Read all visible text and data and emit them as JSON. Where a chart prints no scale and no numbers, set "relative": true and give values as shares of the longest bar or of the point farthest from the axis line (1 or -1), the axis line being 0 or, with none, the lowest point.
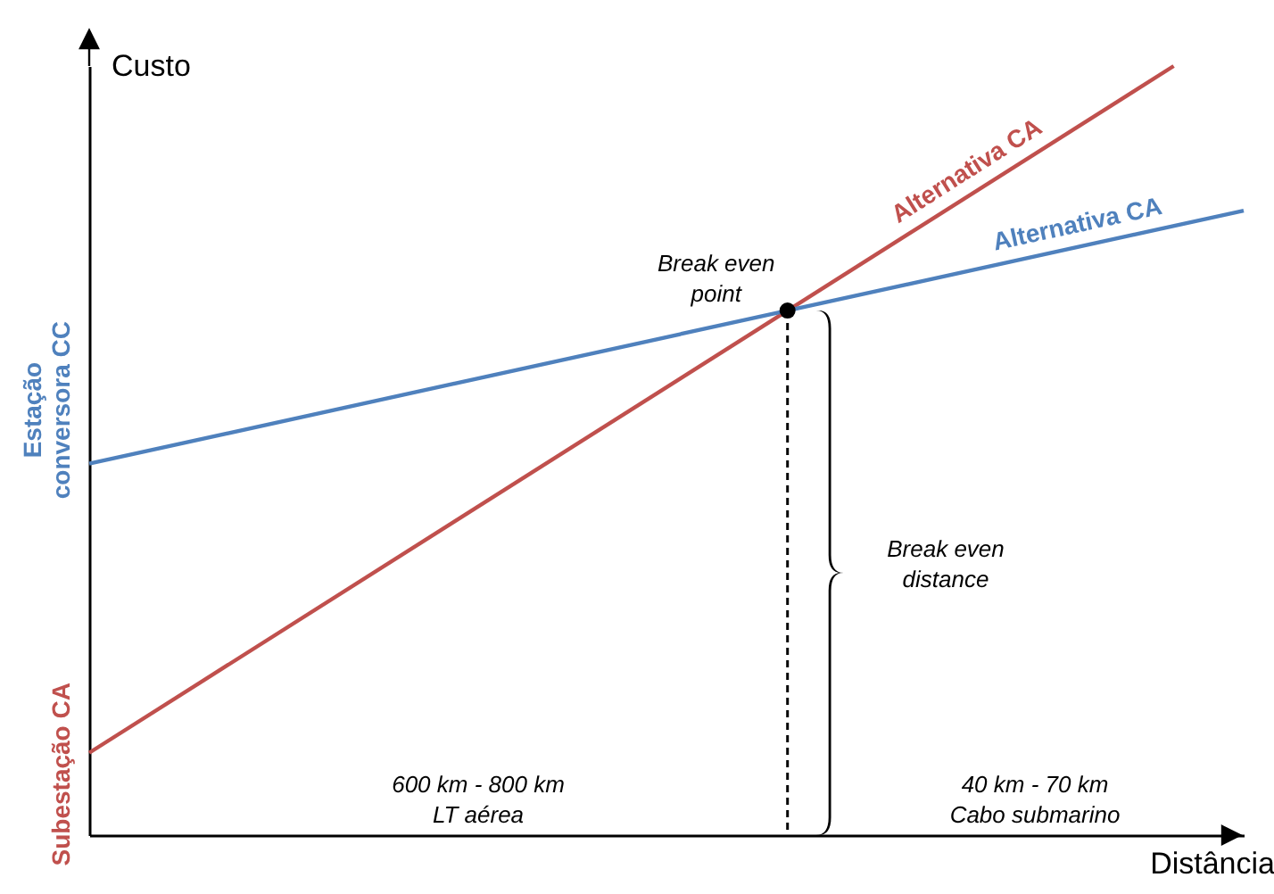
{
  "chart_data": {
    "type": "line",
    "relative": true,
    "xlabel": "Distância",
    "ylabel": "Custo",
    "categories": [
      null,
      null,
      null,
      null,
      null,
      null,
      null,
      null,
      null,
      null,
      null,
      null,
      null,
      null,
      null,
      null,
      null,
      null,
      null,
      null,
      null,
      null,
      null,
      null,
      null,
      null,
      null,
      null,
      null,
      null,
      null,
      null,
      null,
      null
    ],
    "series": [
      {
        "name": "Alternativa CA",
        "color": "#c0504d",
        "values": [
          0.107,
          null,
          null,
          null,
          null,
          null,
          null,
          null,
          null,
          null,
          null,
          null,
          null,
          null,
          null,
          null,
          null,
          null,
          null,
          null,
          null,
          null,
          null,
          null,
          null,
          null,
          null,
          null,
          null,
          null,
          null,
          1,
          null,
          null
        ]
      },
      {
        "name": "Alternativa CA",
        "color": "#4f81bd",
        "values": [
          0.483,
          null,
          null,
          null,
          null,
          null,
          null,
          null,
          null,
          null,
          null,
          null,
          null,
          null,
          null,
          null,
          null,
          null,
          null,
          null,
          null,
          null,
          null,
          null,
          null,
          null,
          null,
          null,
          null,
          null,
          null,
          null,
          null,
          0.812
        ]
      }
    ],
    "marker": "none",
    "annotations": [
      "Break even\npoint",
      "Estação\nconversora CC",
      "Subestação CA",
      "Break even\ndistance",
      "600 km - 800 km\nLT aérea",
      "40 km - 70 km\nCabo submarino"
    ]
  }
}
